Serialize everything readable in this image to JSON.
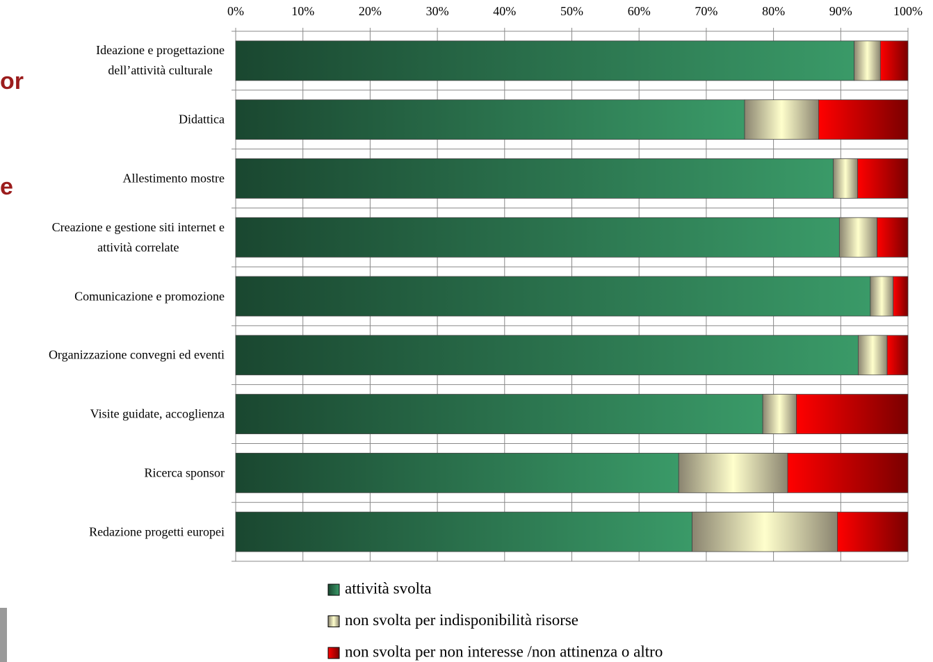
{
  "fragments": [
    "or",
    "e"
  ],
  "chart_data": {
    "type": "stacked_barh",
    "categories": [
      "Ideazione e progettazione\ndell’attività culturale",
      "Didattica",
      "Allestimento mostre",
      "Creazione e gestione siti internet e\nattività correlate",
      "Comunicazione e promozione",
      "Organizzazione convegni ed eventi",
      "Visite guidate, accoglienza",
      "Ricerca sponsor",
      "Redazione progetti europei"
    ],
    "series": [
      {
        "name": "attività svolta",
        "color": "#3a9a68",
        "values": [
          92.0,
          75.7,
          88.9,
          89.8,
          94.4,
          92.6,
          78.4,
          65.9,
          67.9
        ]
      },
      {
        "name": "non svolta per indisponibilità risorse",
        "color": "#ffffcc",
        "values": [
          3.9,
          11.0,
          3.6,
          5.6,
          3.4,
          4.3,
          5.0,
          16.2,
          21.6
        ]
      },
      {
        "name": "non svolta per non interesse /non attinenza o altro",
        "color": "#ff0000",
        "values": [
          4.1,
          13.3,
          7.5,
          4.6,
          2.2,
          3.1,
          16.6,
          17.9,
          10.5
        ]
      }
    ],
    "xlim": [
      0,
      100
    ],
    "xticks": [
      {
        "value": 0,
        "label": "0%"
      },
      {
        "value": 10,
        "label": "10%"
      },
      {
        "value": 20,
        "label": "20%"
      },
      {
        "value": 30,
        "label": "30%"
      },
      {
        "value": 40,
        "label": "40%"
      },
      {
        "value": 50,
        "label": "50%"
      },
      {
        "value": 60,
        "label": "60%"
      },
      {
        "value": 70,
        "label": "70%"
      },
      {
        "value": 80,
        "label": "80%"
      },
      {
        "value": 90,
        "label": "90%"
      },
      {
        "value": 100,
        "label": "100%"
      }
    ],
    "grid": true,
    "legend": "bottom"
  }
}
